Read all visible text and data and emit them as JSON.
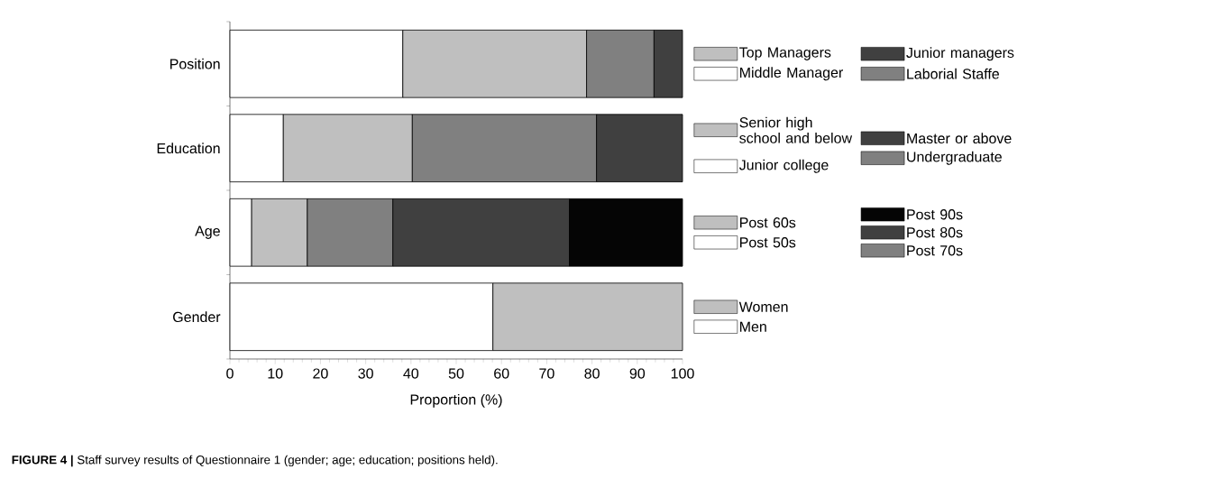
{
  "chart_data": {
    "type": "bar",
    "orientation": "horizontal",
    "stacked": true,
    "categories": [
      "Position",
      "Education",
      "Age",
      "Gender"
    ],
    "series": [
      {
        "name": "Men",
        "color": "#ffffff",
        "values": [
          null,
          null,
          null,
          58.1
        ]
      },
      {
        "name": "Women",
        "color": "#bfbfbf",
        "values": [
          null,
          null,
          null,
          41.9
        ]
      },
      {
        "name": "Post 50s",
        "color": "#ffffff",
        "values": [
          null,
          null,
          4.8,
          null
        ]
      },
      {
        "name": "Post 60s",
        "color": "#bfbfbf",
        "values": [
          null,
          null,
          12.3,
          null
        ]
      },
      {
        "name": "Post 70s",
        "color": "#808080",
        "values": [
          null,
          null,
          18.9,
          null
        ]
      },
      {
        "name": "Post 80s",
        "color": "#404040",
        "values": [
          null,
          null,
          39.0,
          null
        ]
      },
      {
        "name": "Post 90s",
        "color": "#050505",
        "values": [
          null,
          null,
          25.0,
          null
        ]
      },
      {
        "name": "Junior college",
        "color": "#ffffff",
        "values": [
          null,
          11.8,
          null,
          null
        ]
      },
      {
        "name": "Senior high school and below",
        "color": "#bfbfbf",
        "values": [
          null,
          28.5,
          null,
          null
        ]
      },
      {
        "name": "Undergraduate",
        "color": "#808080",
        "values": [
          null,
          40.7,
          null,
          null
        ]
      },
      {
        "name": "Master or above",
        "color": "#404040",
        "values": [
          null,
          19.0,
          null,
          null
        ]
      },
      {
        "name": "Middle Manager",
        "color": "#ffffff",
        "values": [
          38.2,
          null,
          null,
          null
        ]
      },
      {
        "name": "Top Managers",
        "color": "#bfbfbf",
        "values": [
          40.6,
          null,
          null,
          null
        ]
      },
      {
        "name": "Laborial Staffe",
        "color": "#808080",
        "values": [
          14.9,
          null,
          null,
          null
        ]
      },
      {
        "name": "Junior managers",
        "color": "#404040",
        "values": [
          6.3,
          null,
          null,
          null
        ]
      }
    ],
    "xlim": [
      0,
      100
    ],
    "xticks": [
      0,
      10,
      20,
      30,
      40,
      50,
      60,
      70,
      80,
      90,
      100
    ],
    "xlabel": "Proportion (%)",
    "legend": "right",
    "annotations": [
      "**FIGURE 4 |** Staff survey results of Questionnaire 1 (gender; age; education; positions held)."
    ]
  }
}
